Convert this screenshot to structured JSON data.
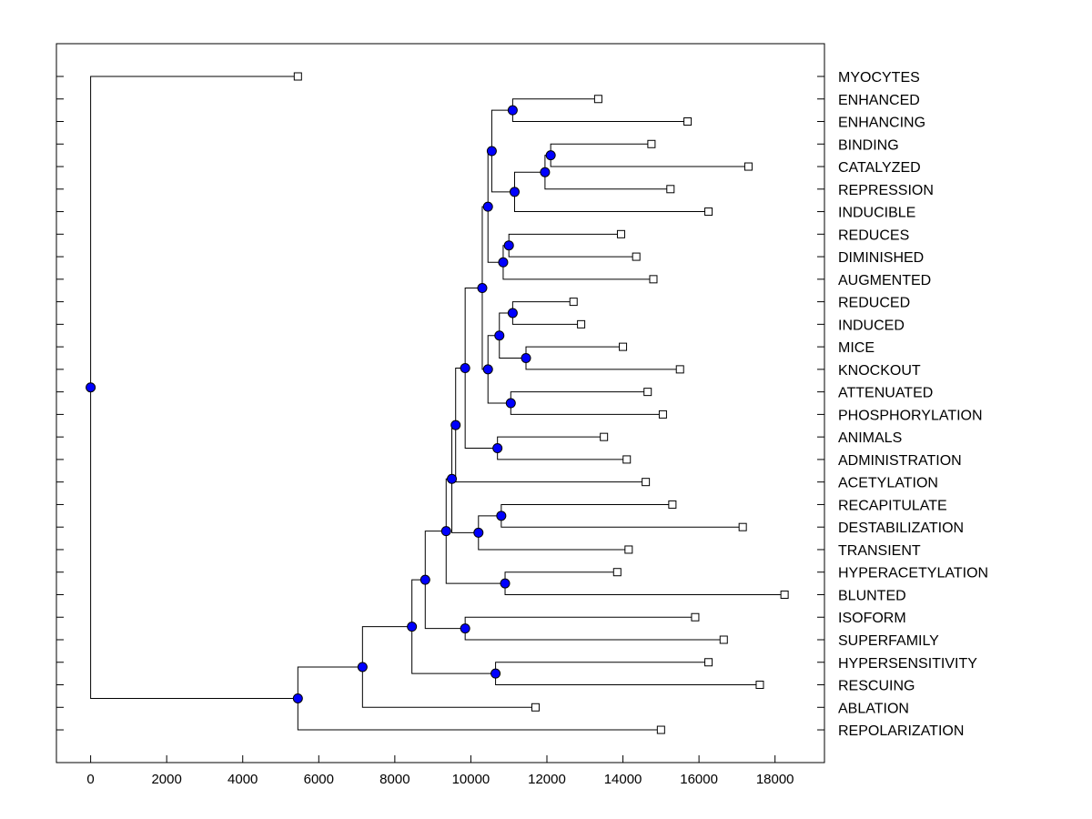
{
  "chart_data": {
    "type": "dendrogram",
    "title": "",
    "xlabel": "",
    "ylabel": "",
    "xlim": [
      -900,
      19300
    ],
    "x_ticks": [
      0,
      2000,
      4000,
      6000,
      8000,
      10000,
      12000,
      14000,
      16000,
      18000
    ],
    "x_tick_labels": [
      "0",
      "2000",
      "4000",
      "6000",
      "8000",
      "10000",
      "12000",
      "14000",
      "16000",
      "18000"
    ],
    "node_color": "#0000ff",
    "leaves": [
      {
        "id": "L0",
        "label": "MYOCYTES",
        "value": 5450
      },
      {
        "id": "L1",
        "label": "ENHANCED",
        "value": 13350
      },
      {
        "id": "L2",
        "label": "ENHANCING",
        "value": 15700
      },
      {
        "id": "L3",
        "label": "BINDING",
        "value": 14750
      },
      {
        "id": "L4",
        "label": "CATALYZED",
        "value": 17300
      },
      {
        "id": "L5",
        "label": "REPRESSION",
        "value": 15250
      },
      {
        "id": "L6",
        "label": "INDUCIBLE",
        "value": 16250
      },
      {
        "id": "L7",
        "label": "REDUCES",
        "value": 13950
      },
      {
        "id": "L8",
        "label": "DIMINISHED",
        "value": 14350
      },
      {
        "id": "L9",
        "label": "AUGMENTED",
        "value": 14800
      },
      {
        "id": "L10",
        "label": "REDUCED",
        "value": 12700
      },
      {
        "id": "L11",
        "label": "INDUCED",
        "value": 12900
      },
      {
        "id": "L12",
        "label": "MICE",
        "value": 14000
      },
      {
        "id": "L13",
        "label": "KNOCKOUT",
        "value": 15500
      },
      {
        "id": "L14",
        "label": "ATTENUATED",
        "value": 14650
      },
      {
        "id": "L15",
        "label": "PHOSPHORYLATION",
        "value": 15050
      },
      {
        "id": "L16",
        "label": "ANIMALS",
        "value": 13500
      },
      {
        "id": "L17",
        "label": "ADMINISTRATION",
        "value": 14100
      },
      {
        "id": "L18",
        "label": "ACETYLATION",
        "value": 14600
      },
      {
        "id": "L19",
        "label": "RECAPITULATE",
        "value": 15300
      },
      {
        "id": "L20",
        "label": "DESTABILIZATION",
        "value": 17150
      },
      {
        "id": "L21",
        "label": "TRANSIENT",
        "value": 14150
      },
      {
        "id": "L22",
        "label": "HYPERACETYLATION",
        "value": 13850
      },
      {
        "id": "L23",
        "label": "BLUNTED",
        "value": 18250
      },
      {
        "id": "L24",
        "label": "ISOFORM",
        "value": 15900
      },
      {
        "id": "L25",
        "label": "SUPERFAMILY",
        "value": 16650
      },
      {
        "id": "L26",
        "label": "HYPERSENSITIVITY",
        "value": 16250
      },
      {
        "id": "L27",
        "label": "RESCUING",
        "value": 17600
      },
      {
        "id": "L28",
        "label": "ABLATION",
        "value": 11700
      },
      {
        "id": "L29",
        "label": "REPOLARIZATION",
        "value": 15000
      }
    ],
    "merges": [
      {
        "id": "a",
        "value": 11100,
        "children": [
          "L1",
          "L2"
        ]
      },
      {
        "id": "b",
        "value": 12100,
        "children": [
          "L3",
          "L4"
        ]
      },
      {
        "id": "c",
        "value": 11950,
        "children": [
          "b",
          "L5"
        ]
      },
      {
        "id": "d",
        "value": 11150,
        "children": [
          "c",
          "L6"
        ]
      },
      {
        "id": "e",
        "value": 10550,
        "children": [
          "a",
          "d"
        ]
      },
      {
        "id": "f",
        "value": 11000,
        "children": [
          "L7",
          "L8"
        ]
      },
      {
        "id": "g",
        "value": 10850,
        "children": [
          "f",
          "L9"
        ]
      },
      {
        "id": "h",
        "value": 10450,
        "children": [
          "e",
          "g"
        ]
      },
      {
        "id": "i",
        "value": 11100,
        "children": [
          "L10",
          "L11"
        ]
      },
      {
        "id": "j",
        "value": 11450,
        "children": [
          "L12",
          "L13"
        ]
      },
      {
        "id": "k",
        "value": 10750,
        "children": [
          "i",
          "j"
        ]
      },
      {
        "id": "l",
        "value": 11050,
        "children": [
          "L14",
          "L15"
        ]
      },
      {
        "id": "m",
        "value": 10450,
        "children": [
          "k",
          "l"
        ]
      },
      {
        "id": "n",
        "value": 10300,
        "children": [
          "h",
          "m"
        ]
      },
      {
        "id": "o",
        "value": 10700,
        "children": [
          "L16",
          "L17"
        ]
      },
      {
        "id": "p",
        "value": 9850,
        "children": [
          "n",
          "o"
        ]
      },
      {
        "id": "q",
        "value": 9600,
        "children": [
          "p",
          "L18"
        ]
      },
      {
        "id": "r",
        "value": 10800,
        "children": [
          "L19",
          "L20"
        ]
      },
      {
        "id": "s",
        "value": 10200,
        "children": [
          "r",
          "L21"
        ]
      },
      {
        "id": "t",
        "value": 9500,
        "children": [
          "q",
          "s"
        ]
      },
      {
        "id": "u",
        "value": 10900,
        "children": [
          "L22",
          "L23"
        ]
      },
      {
        "id": "v",
        "value": 9350,
        "children": [
          "t",
          "u"
        ]
      },
      {
        "id": "w",
        "value": 9850,
        "children": [
          "L24",
          "L25"
        ]
      },
      {
        "id": "x",
        "value": 8800,
        "children": [
          "v",
          "w"
        ]
      },
      {
        "id": "y",
        "value": 10650,
        "children": [
          "L26",
          "L27"
        ]
      },
      {
        "id": "z",
        "value": 8450,
        "children": [
          "x",
          "y"
        ]
      },
      {
        "id": "aa",
        "value": 7150,
        "children": [
          "z",
          "L28"
        ]
      },
      {
        "id": "bb",
        "value": 5450,
        "children": [
          "aa",
          "L29"
        ]
      },
      {
        "id": "root",
        "value": 0,
        "children": [
          "L0",
          "bb"
        ]
      }
    ]
  }
}
